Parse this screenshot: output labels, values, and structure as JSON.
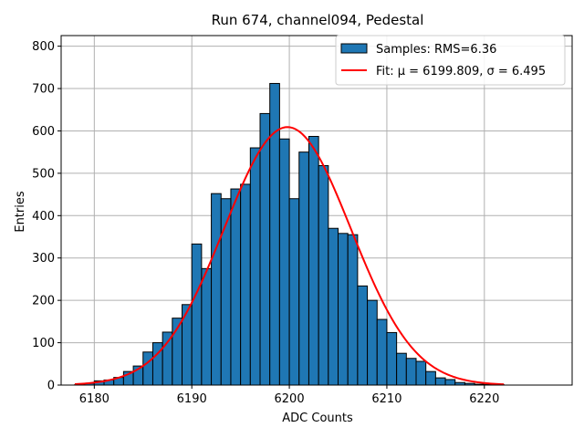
{
  "chart_data": {
    "type": "bar",
    "title": "Run 674, channel094, Pedestal",
    "xlabel": "ADC Counts",
    "ylabel": "Entries",
    "xlim": [
      6176.6,
      6229.0
    ],
    "ylim": [
      0,
      825
    ],
    "grid": true,
    "legend_position": "top-right",
    "xticks": [
      6180,
      6190,
      6200,
      6210,
      6220
    ],
    "yticks": [
      0,
      100,
      200,
      300,
      400,
      500,
      600,
      700,
      800
    ],
    "bin_width": 1,
    "histogram": {
      "name": "Samples: RMS=6.36",
      "color": "#1f77b4",
      "edge_color": "#000000",
      "bin_edges_start": 6178,
      "counts": [
        1,
        4,
        10,
        12,
        18,
        32,
        45,
        78,
        100,
        125,
        158,
        190,
        333,
        275,
        452,
        440,
        463,
        474,
        560,
        641,
        712,
        581,
        440,
        550,
        587,
        518,
        370,
        358,
        355,
        234,
        200,
        155,
        124,
        75,
        63,
        56,
        32,
        17,
        13,
        6,
        4,
        2,
        1,
        1,
        0,
        0,
        0,
        0
      ]
    },
    "fit": {
      "name": "Fit: μ = 6199.809, σ = 6.495",
      "color": "#ff0000",
      "mu": 6199.809,
      "sigma": 6.495,
      "amplitude": 609,
      "x_range": [
        6178,
        6222
      ]
    }
  }
}
